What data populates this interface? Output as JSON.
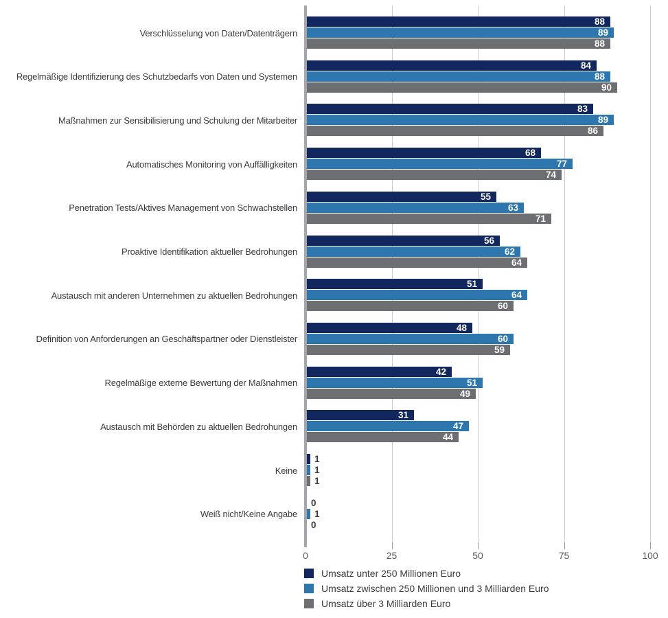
{
  "chart_data": {
    "type": "bar",
    "orientation": "horizontal",
    "title": "",
    "xlabel": "",
    "ylabel": "",
    "xlim": [
      0,
      100
    ],
    "x_ticks": [
      0,
      25,
      50,
      75,
      100
    ],
    "grid": true,
    "value_labels": true,
    "legend_position": "bottom",
    "categories": [
      "Verschlüsselung von Daten/Datenträgern",
      "Regelmäßige Identifizierung des Schutzbedarfs von Daten und Systemen",
      "Maßnahmen zur Sensibilisierung und Schulung der Mitarbeiter",
      "Automatisches Monitoring von Auffälligkeiten",
      "Penetration Tests/Aktives Management von Schwachstellen",
      "Proaktive Identifikation aktueller Bedrohungen",
      "Austausch mit anderen Unternehmen zu aktuellen Bedrohungen",
      "Definition von Anforderungen an Geschäftspartner oder Dienstleister",
      "Regelmäßige externe Bewertung der Maßnahmen",
      "Austausch mit Behörden zu aktuellen Bedrohungen",
      "Keine",
      "Weiß nicht/Keine Angabe"
    ],
    "series": [
      {
        "name": "Umsatz unter 250 Millionen Euro",
        "color": "#12275e",
        "values": [
          88,
          84,
          83,
          68,
          55,
          56,
          51,
          48,
          42,
          31,
          1,
          0
        ]
      },
      {
        "name": "Umsatz zwischen 250 Millionen und 3 Milliarden Euro",
        "color": "#2e76ae",
        "values": [
          89,
          88,
          89,
          77,
          63,
          62,
          64,
          60,
          51,
          47,
          1,
          1
        ]
      },
      {
        "name": "Umsatz über 3 Milliarden Euro",
        "color": "#6d6e71",
        "values": [
          88,
          90,
          86,
          74,
          71,
          64,
          60,
          59,
          49,
          44,
          1,
          0
        ]
      }
    ]
  },
  "colors": {
    "background": "#ffffff",
    "gridline": "#cbcbcb",
    "axis_line": "#a6a6a8",
    "tick_label": "#58585a",
    "category_label": "#3c3c3b",
    "value_label_inside": "#ffffff",
    "value_label_outside": "#3c3c3b"
  }
}
